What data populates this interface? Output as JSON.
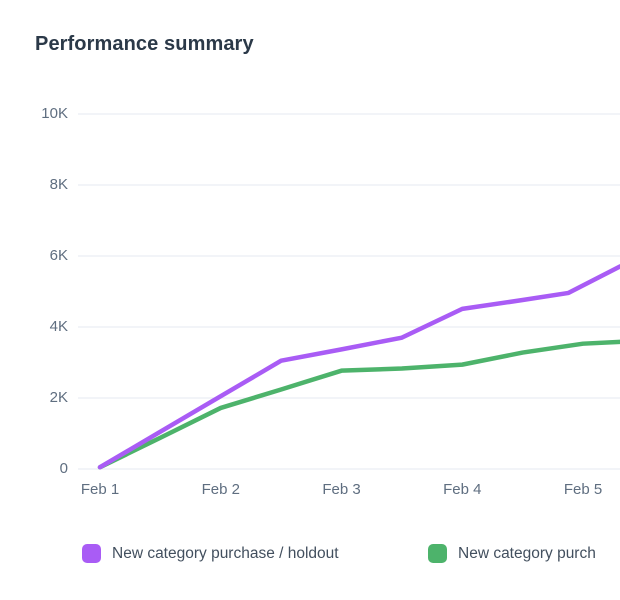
{
  "title": "Performance summary",
  "chart_data": {
    "type": "line",
    "title": "Performance summary",
    "xlabel": "",
    "ylabel": "",
    "grid": "horizontal-only",
    "legend_position": "bottom",
    "x_axis": {
      "unit": "date",
      "ticks": [
        {
          "day": 1,
          "label": "Feb 1"
        },
        {
          "day": 2,
          "label": "Feb 2"
        },
        {
          "day": 3,
          "label": "Feb 3"
        },
        {
          "day": 4,
          "label": "Feb 4"
        },
        {
          "day": 5,
          "label": "Feb 5"
        }
      ],
      "visible_range_days": [
        1,
        5.31
      ]
    },
    "y_axis": {
      "min": 0,
      "max": 10000,
      "ticks": [
        {
          "value": 0,
          "label": "0"
        },
        {
          "value": 2000,
          "label": "2K"
        },
        {
          "value": 4000,
          "label": "4K"
        },
        {
          "value": 6000,
          "label": "6K"
        },
        {
          "value": 8000,
          "label": "8K"
        },
        {
          "value": 10000,
          "label": "10K"
        }
      ]
    },
    "series": [
      {
        "name": "New category purchase / holdout",
        "color": "#a95cf5",
        "points": [
          {
            "day": 1.0,
            "value": 50
          },
          {
            "day": 1.5,
            "value": 1050
          },
          {
            "day": 2.0,
            "value": 2050
          },
          {
            "day": 2.5,
            "value": 3050
          },
          {
            "day": 3.0,
            "value": 3370
          },
          {
            "day": 3.5,
            "value": 3700
          },
          {
            "day": 4.0,
            "value": 4510
          },
          {
            "day": 4.5,
            "value": 4760
          },
          {
            "day": 4.88,
            "value": 4960
          },
          {
            "day": 5.31,
            "value": 5710
          }
        ]
      },
      {
        "name": "New category purch",
        "color": "#4db36b",
        "points": [
          {
            "day": 1.0,
            "value": 50
          },
          {
            "day": 1.5,
            "value": 880
          },
          {
            "day": 2.0,
            "value": 1720
          },
          {
            "day": 2.5,
            "value": 2240
          },
          {
            "day": 3.0,
            "value": 2770
          },
          {
            "day": 3.5,
            "value": 2830
          },
          {
            "day": 4.0,
            "value": 2940
          },
          {
            "day": 4.5,
            "value": 3280
          },
          {
            "day": 5.0,
            "value": 3530
          },
          {
            "day": 5.31,
            "value": 3580
          }
        ]
      }
    ],
    "legend": [
      {
        "label": "New category purchase / holdout",
        "color": "#a95cf5"
      },
      {
        "label": "New category purch",
        "color": "#4db36b"
      }
    ]
  },
  "style": {
    "grid_color": "#e9edf3",
    "axis_text_color": "#5f6e80",
    "line_width": 4.5
  }
}
